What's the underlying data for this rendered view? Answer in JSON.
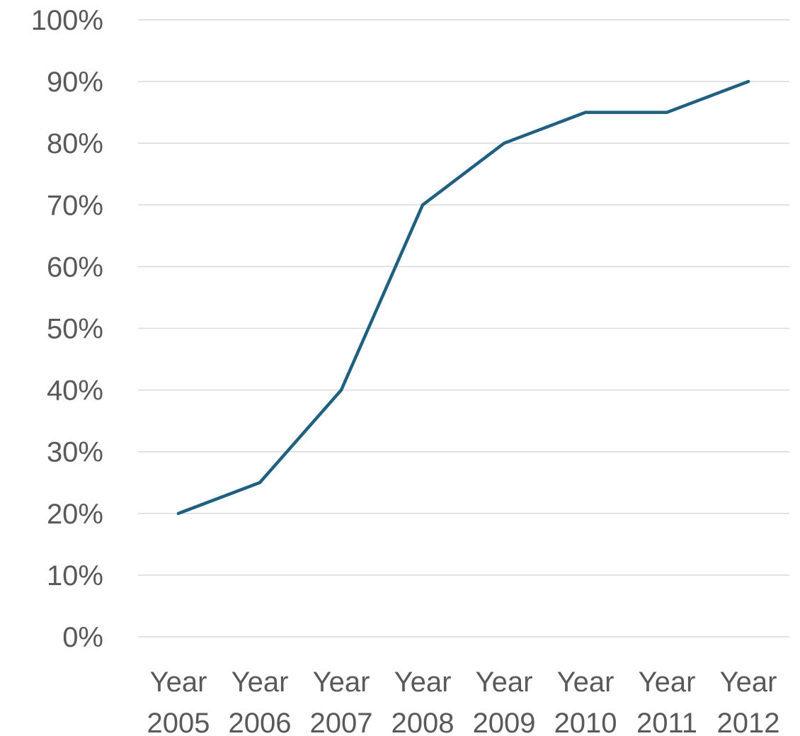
{
  "chart_data": {
    "type": "line",
    "categories": [
      "Year 2005",
      "Year 2006",
      "Year 2007",
      "Year 2008",
      "Year 2009",
      "Year 2010",
      "Year 2011",
      "Year 2012"
    ],
    "category_lines": [
      [
        "Year",
        "2005"
      ],
      [
        "Year",
        "2006"
      ],
      [
        "Year",
        "2007"
      ],
      [
        "Year",
        "2008"
      ],
      [
        "Year",
        "2009"
      ],
      [
        "Year",
        "2010"
      ],
      [
        "Year",
        "2011"
      ],
      [
        "Year",
        "2012"
      ]
    ],
    "series": [
      {
        "values": [
          20,
          25,
          40,
          70,
          80,
          85,
          85,
          90
        ],
        "color": "#1f5f7f"
      }
    ],
    "ylim": [
      0,
      100
    ],
    "y_ticks": [
      0,
      10,
      20,
      30,
      40,
      50,
      60,
      70,
      80,
      90,
      100
    ],
    "y_tick_labels": [
      "0%",
      "10%",
      "20%",
      "30%",
      "40%",
      "50%",
      "60%",
      "70%",
      "80%",
      "90%",
      "100%"
    ],
    "grid": true,
    "legend": "none"
  }
}
